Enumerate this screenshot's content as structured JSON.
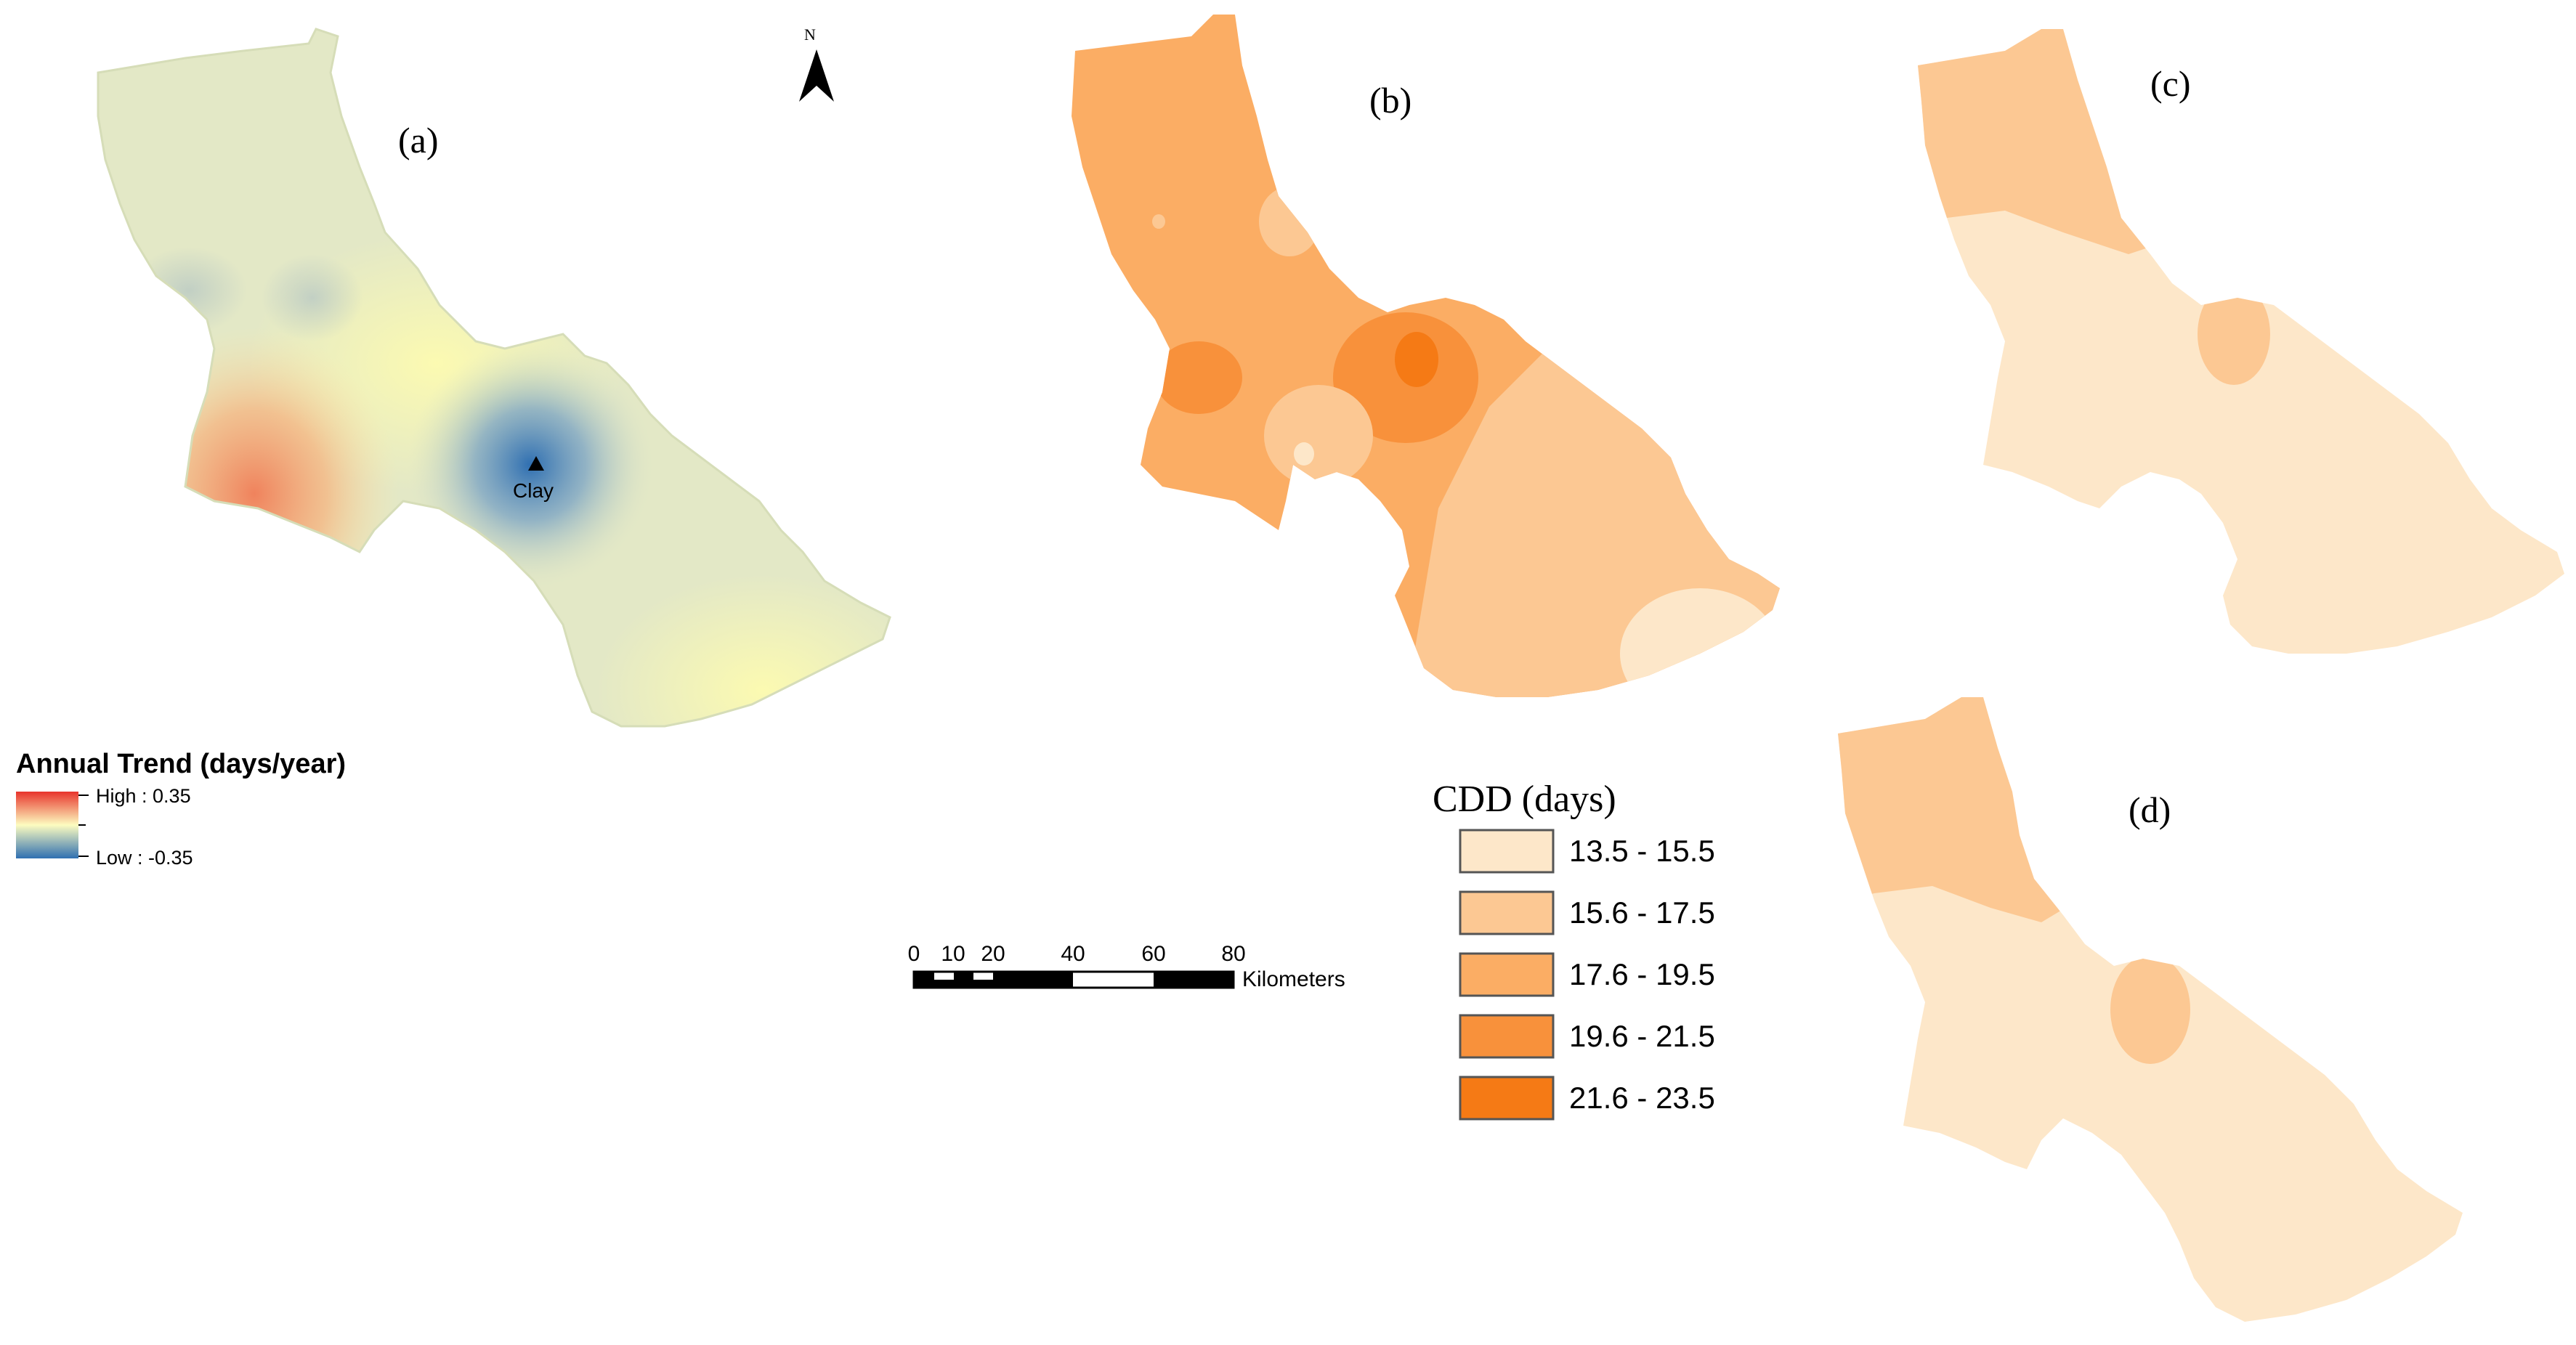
{
  "panels": {
    "a": "(a)",
    "b": "(b)",
    "c": "(c)",
    "d": "(d)"
  },
  "north_arrow": {
    "label": "N",
    "icon": "north-arrow-icon"
  },
  "station": {
    "name": "Clay",
    "icon": "station-triangle-icon"
  },
  "trend_legend": {
    "title": "Annual Trend (days/year)",
    "high_label": "High : 0.35",
    "low_label": "Low : -0.35",
    "high_color": "#e8342c",
    "mid_color": "#fdfcc0",
    "low_color": "#2f6fb1"
  },
  "scale_bar": {
    "ticks": [
      "0",
      "10",
      "20",
      "40",
      "60",
      "80"
    ],
    "unit": "Kilometers"
  },
  "cdd_legend": {
    "title": "CDD (days)",
    "classes": [
      {
        "label": "13.5 - 15.5",
        "color": "#fde7c9"
      },
      {
        "label": "15.6 - 17.5",
        "color": "#fcc893"
      },
      {
        "label": "17.6 - 19.5",
        "color": "#fbad64"
      },
      {
        "label": "19.6 - 21.5",
        "color": "#f8913b"
      },
      {
        "label": "21.6 - 23.5",
        "color": "#f57a15"
      }
    ]
  }
}
